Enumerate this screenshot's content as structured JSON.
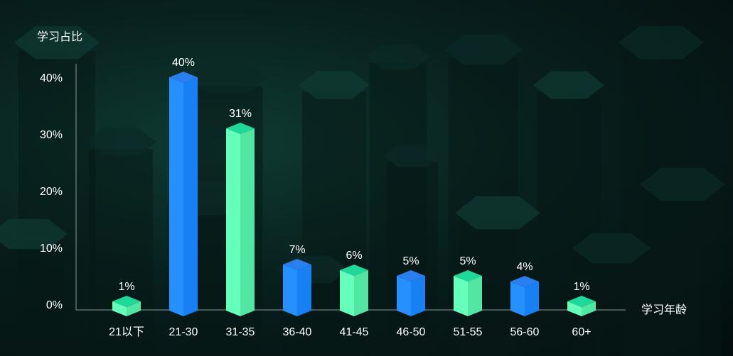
{
  "chart_data": {
    "type": "bar",
    "style": "3d-prism",
    "ylabel": "学习占比",
    "xlabel": "学习年龄",
    "categories": [
      "21以下",
      "21-30",
      "31-35",
      "36-40",
      "41-45",
      "46-50",
      "51-55",
      "56-60",
      "60+"
    ],
    "values": [
      1,
      40,
      31,
      7,
      6,
      5,
      5,
      4,
      1
    ],
    "data_labels": [
      "1%",
      "40%",
      "31%",
      "7%",
      "6%",
      "5%",
      "5%",
      "4%",
      "1%"
    ],
    "yticks": [
      "0%",
      "10%",
      "20%",
      "30%",
      "40%"
    ],
    "ylim": [
      0,
      40
    ],
    "grid": false,
    "colors": {
      "blue": {
        "left": "#2690ff",
        "right": "#1780f5",
        "top": "#2a7ff0"
      },
      "green": {
        "left": "#64ffba",
        "right": "#52e6a2",
        "top": "#1fd99a"
      }
    },
    "bar_color_sequence": [
      "green",
      "blue",
      "green",
      "blue",
      "green",
      "blue",
      "green",
      "blue",
      "green"
    ]
  }
}
